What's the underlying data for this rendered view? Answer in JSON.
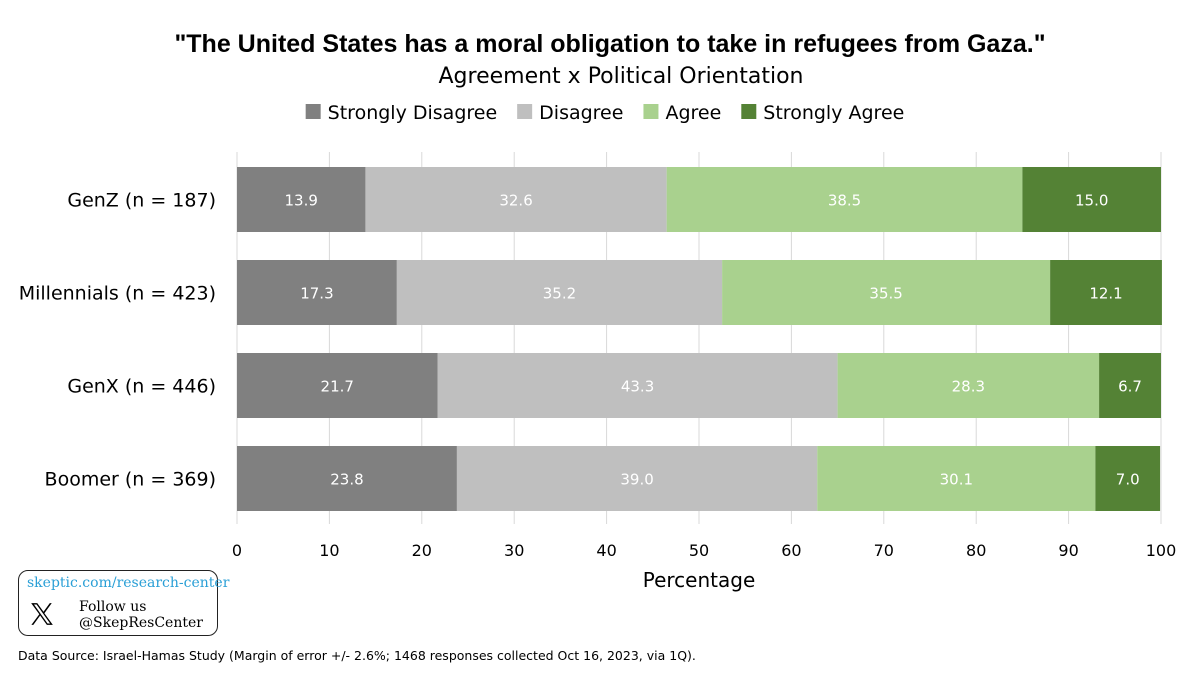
{
  "chart_data": {
    "type": "bar",
    "orientation": "horizontal",
    "stacked": true,
    "title": "\"The United States has a moral obligation to take in refugees from Gaza.\"",
    "subtitle": "Agreement x Political Orientation",
    "xlabel": "Percentage",
    "xlim": [
      0,
      100
    ],
    "xticks": [
      "0",
      "10",
      "20",
      "30",
      "40",
      "50",
      "60",
      "70",
      "80",
      "90",
      "100"
    ],
    "grid": true,
    "legend_position": "top",
    "categories": [
      "GenZ (n = 187)",
      "Millennials (n = 423)",
      "GenX (n = 446)",
      "Boomer (n = 369)"
    ],
    "series": [
      {
        "name": "Strongly Disagree",
        "color": "#808080",
        "values": [
          13.9,
          17.3,
          21.7,
          23.8
        ],
        "labels": [
          "13.9",
          "17.3",
          "21.7",
          "23.8"
        ]
      },
      {
        "name": "Disagree",
        "color": "#bfbfbf",
        "values": [
          32.6,
          35.2,
          43.3,
          39.0
        ],
        "labels": [
          "32.6",
          "35.2",
          "43.3",
          "39.0"
        ]
      },
      {
        "name": "Agree",
        "color": "#a9d18e",
        "values": [
          38.5,
          35.5,
          28.3,
          30.1
        ],
        "labels": [
          "38.5",
          "35.5",
          "28.3",
          "30.1"
        ]
      },
      {
        "name": "Strongly Agree",
        "color": "#548235",
        "values": [
          15.0,
          12.1,
          6.7,
          7.0
        ],
        "labels": [
          "15.0",
          "12.1",
          "6.7",
          "7.0"
        ]
      }
    ]
  },
  "badge": {
    "url": "skeptic.com/research-center",
    "follow": "Follow us",
    "handle": "@SkepResCenter",
    "icon": "x-logo-icon",
    "url_color": "#2a9fd6"
  },
  "source": "Data Source: Israel-Hamas Study (Margin of error +/- 2.6%; 1468 responses collected Oct 16, 2023, via 1Q)."
}
